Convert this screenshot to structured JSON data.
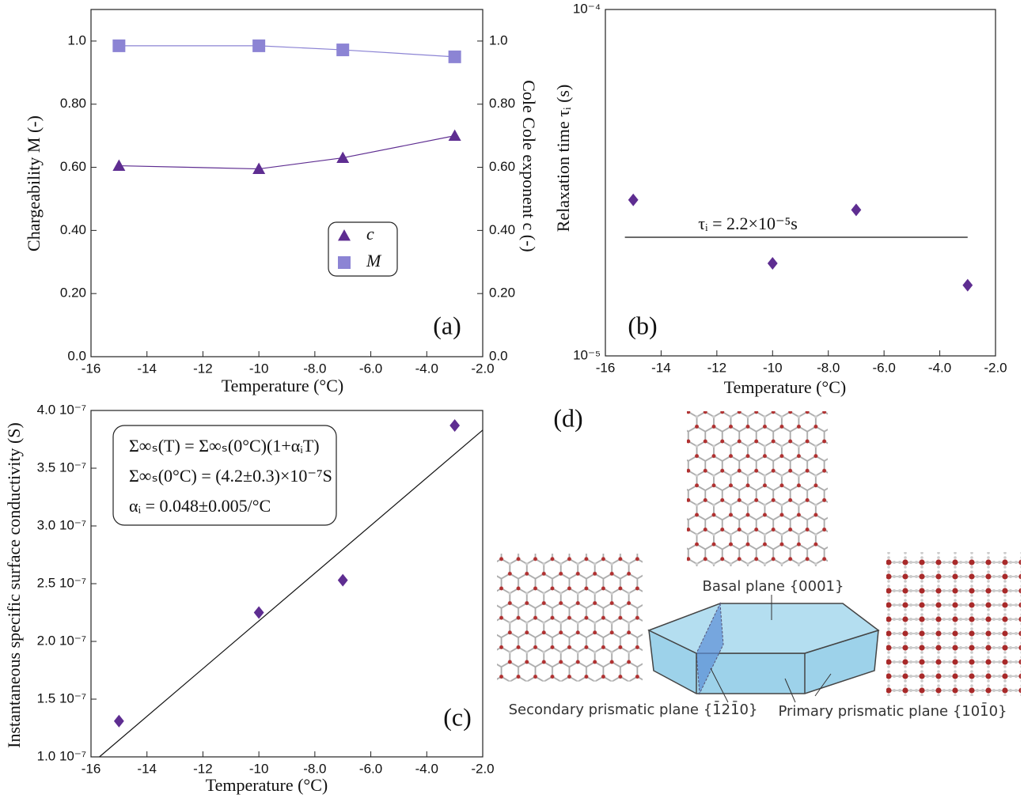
{
  "chart_data": [
    {
      "type": "line",
      "panel_label": "(a)",
      "x_label": "Temperature (°C)",
      "y_label": "Chargeability M (-)",
      "y2_label": "Cole Cole exponent c (-)",
      "x": [
        -15,
        -10,
        -7,
        -3
      ],
      "series": [
        {
          "name": "c",
          "color": "#5e2d91",
          "marker": "triangle",
          "axis": "y2",
          "values": [
            0.605,
            0.595,
            0.63,
            0.7
          ]
        },
        {
          "name": "M",
          "color": "#8c84d4",
          "marker": "square",
          "values": [
            0.985,
            0.985,
            0.972,
            0.95
          ]
        }
      ],
      "xlim": [
        -16,
        -2
      ],
      "xticks": [
        -16,
        -14,
        -12,
        -10,
        {
          "value": -8,
          "label": "-8.0"
        },
        {
          "value": -6,
          "label": "-6.0"
        },
        {
          "value": -4,
          "label": "-4.0"
        },
        {
          "value": -2,
          "label": "-2.0"
        }
      ],
      "ylim": [
        0,
        1.1
      ],
      "yticks": [
        {
          "value": 0,
          "label": "0.0"
        },
        {
          "value": 0.2,
          "label": "0.20"
        },
        {
          "value": 0.4,
          "label": "0.40"
        },
        {
          "value": 0.6,
          "label": "0.60"
        },
        {
          "value": 0.8,
          "label": "0.80"
        },
        {
          "value": 1,
          "label": "1.0"
        }
      ],
      "y2lim": [
        0,
        1.1
      ],
      "y2ticks": [
        {
          "value": 0,
          "label": "0.0"
        },
        {
          "value": 0.2,
          "label": "0.20"
        },
        {
          "value": 0.4,
          "label": "0.40"
        },
        {
          "value": 0.6,
          "label": "0.60"
        },
        {
          "value": 0.8,
          "label": "0.80"
        },
        {
          "value": 1,
          "label": "1.0"
        }
      ],
      "legend": "lower right"
    },
    {
      "type": "scatter",
      "panel_label": "(b)",
      "x_label": "Temperature (°C)",
      "y_label": "Relaxation time τᵢ (s)",
      "x": [
        -15,
        -10,
        -7,
        -3
      ],
      "values": [
        2.82e-05,
        1.85e-05,
        2.64e-05,
        1.6e-05
      ],
      "color": "#5e2d91",
      "marker": "diamond",
      "reference_line": {
        "x": [
          -15.3,
          -3
        ],
        "y": 2.2e-05
      },
      "annotation": "τᵢ = 2.2×10⁻⁵s",
      "log_y": true,
      "xlim": [
        -16,
        -2
      ],
      "xticks": [
        -16,
        -14,
        -12,
        -10,
        {
          "value": -8,
          "label": "-8.0"
        },
        {
          "value": -6,
          "label": "-6.0"
        },
        {
          "value": -4,
          "label": "-4.0"
        },
        {
          "value": -2,
          "label": "-2.0"
        }
      ],
      "ylim": [
        1e-05,
        0.0001
      ],
      "yticks": [
        {
          "value": 1e-05,
          "label": "10⁻⁵"
        },
        {
          "value": 0.0001,
          "label": "10⁻⁴"
        }
      ]
    },
    {
      "type": "scatter",
      "panel_label": "(c)",
      "x_label": "Temperature (°C)",
      "y_label": "Instantaneous specific surface conductivity (S)",
      "x": [
        -15,
        -10,
        -7,
        -3
      ],
      "values": [
        1.31e-07,
        2.25e-07,
        2.53e-07,
        3.87e-07
      ],
      "color": "#5e2d91",
      "marker": "diamond",
      "fit_line": {
        "x": [
          -15.7,
          -2
        ],
        "y": [
          1e-07,
          3.83e-07
        ]
      },
      "annotations": [
        "Σ∞ₛ(T) = Σ∞ₛ(0°C)(1+αᵢT)",
        "Σ∞ₛ(0°C) = (4.2±0.3)×10⁻⁷S",
        "αᵢ = 0.048±0.005/°C"
      ],
      "xlim": [
        -16,
        -2
      ],
      "xticks": [
        -16,
        -14,
        -12,
        -10,
        {
          "value": -8,
          "label": "-8.0"
        },
        {
          "value": -6,
          "label": "-6.0"
        },
        {
          "value": -4,
          "label": "-4.0"
        },
        {
          "value": -2,
          "label": "-2.0"
        }
      ],
      "ylim": [
        1e-07,
        4e-07
      ],
      "yticks": [
        {
          "value": 1e-07,
          "label": "1.0 10⁻⁷"
        },
        {
          "value": 1.5e-07,
          "label": "1.5 10⁻⁷"
        },
        {
          "value": 2e-07,
          "label": "2.0 10⁻⁷"
        },
        {
          "value": 2.5e-07,
          "label": "2.5 10⁻⁷"
        },
        {
          "value": 3e-07,
          "label": "3.0 10⁻⁷"
        },
        {
          "value": 3.5e-07,
          "label": "3.5 10⁻⁷"
        },
        {
          "value": 4e-07,
          "label": "4.0 10⁻⁷"
        }
      ]
    }
  ],
  "diagram": {
    "panel_label": "(d)",
    "basal": "Basal plane {0001}",
    "secondary": "Secondary prismatic plane {1̄21̄0}",
    "primary": "Primary prismatic plane {101̄0}"
  }
}
